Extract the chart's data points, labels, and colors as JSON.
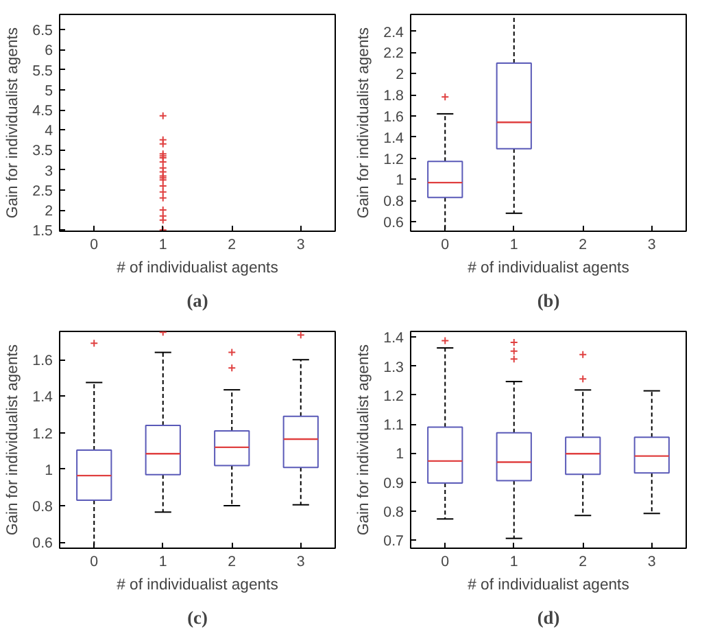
{
  "chart_data": [
    {
      "type": "scatter",
      "title": "(a)",
      "xlabel": "# of individualist agents",
      "ylabel": "Gain for individualist agents",
      "categories": [
        "0",
        "1",
        "2",
        "3"
      ],
      "ylim": [
        1.47,
        6.88
      ],
      "yticks": [
        1.5,
        2,
        2.5,
        3,
        3.5,
        4,
        4.5,
        5,
        5.5,
        6,
        6.5
      ],
      "grid": false,
      "marker": "cross",
      "series": [
        {
          "color": "#e04040",
          "x": [
            "1",
            "1",
            "1",
            "1",
            "1",
            "1",
            "1",
            "1",
            "1",
            "1",
            "1",
            "1",
            "1",
            "1",
            "1",
            "1",
            "1",
            "1",
            "1"
          ],
          "values": [
            4.35,
            3.75,
            3.65,
            3.4,
            3.35,
            3.3,
            3.2,
            3.05,
            2.95,
            2.85,
            2.8,
            2.75,
            2.6,
            2.45,
            2.3,
            2.0,
            1.85,
            1.75,
            1.5
          ]
        }
      ]
    },
    {
      "type": "box",
      "title": "(b)",
      "xlabel": "# of individualist agents",
      "ylabel": "Gain for individualist agents",
      "categories": [
        "0",
        "1",
        "2",
        "3"
      ],
      "ylim": [
        0.51,
        2.56
      ],
      "yticks": [
        0.6,
        0.8,
        1,
        1.2,
        1.4,
        1.6,
        1.8,
        2,
        2.2,
        2.4
      ],
      "grid": false,
      "marker": "cross",
      "series": [
        {
          "color": "#5a5ab8",
          "boxes": [
            {
              "low": 0.51,
              "q1": 0.83,
              "median": 0.97,
              "q3": 1.17,
              "high": 1.62,
              "outliers": [
                1.78
              ]
            },
            {
              "low": 0.68,
              "q1": 1.29,
              "median": 1.54,
              "q3": 2.1,
              "high": 2.56
            },
            null,
            null
          ]
        }
      ]
    },
    {
      "type": "box",
      "title": "(c)",
      "xlabel": "# of individualist agents",
      "ylabel": "Gain for individualist agents",
      "categories": [
        "0",
        "1",
        "2",
        "3"
      ],
      "ylim": [
        0.567,
        1.755
      ],
      "yticks": [
        0.6,
        0.8,
        1,
        1.2,
        1.4,
        1.6
      ],
      "grid": false,
      "marker": "cross",
      "series": [
        {
          "color": "#5a5ab8",
          "boxes": [
            {
              "low": 0.567,
              "q1": 0.83,
              "median": 0.965,
              "q3": 1.105,
              "high": 1.475,
              "outliers": [
                1.69
              ]
            },
            {
              "low": 0.765,
              "q1": 0.97,
              "median": 1.085,
              "q3": 1.24,
              "high": 1.64,
              "outliers": [
                1.75
              ]
            },
            {
              "low": 0.8,
              "q1": 1.02,
              "median": 1.12,
              "q3": 1.21,
              "high": 1.435,
              "outliers": [
                1.64,
                1.555
              ]
            },
            {
              "low": 0.805,
              "q1": 1.01,
              "median": 1.165,
              "q3": 1.29,
              "high": 1.6,
              "outliers": [
                1.735
              ]
            }
          ]
        }
      ]
    },
    {
      "type": "box",
      "title": "(d)",
      "xlabel": "# of individualist agents",
      "ylabel": "Gain for individualist agents",
      "categories": [
        "0",
        "1",
        "2",
        "3"
      ],
      "ylim": [
        0.672,
        1.42
      ],
      "yticks": [
        0.7,
        0.8,
        0.9,
        1,
        1.1,
        1.2,
        1.3,
        1.4
      ],
      "grid": false,
      "marker": "cross",
      "series": [
        {
          "color": "#5a5ab8",
          "boxes": [
            {
              "low": 0.773,
              "q1": 0.897,
              "median": 0.973,
              "q3": 1.09,
              "high": 1.363,
              "outliers": [
                1.388
              ]
            },
            {
              "low": 0.706,
              "q1": 0.905,
              "median": 0.969,
              "q3": 1.07,
              "high": 1.247,
              "outliers": [
                1.382,
                1.352,
                1.325
              ]
            },
            {
              "low": 0.785,
              "q1": 0.927,
              "median": 0.998,
              "q3": 1.055,
              "high": 1.218,
              "outliers": [
                1.34,
                1.256
              ]
            },
            {
              "low": 0.792,
              "q1": 0.932,
              "median": 0.99,
              "q3": 1.055,
              "high": 1.215
            }
          ]
        }
      ]
    }
  ]
}
